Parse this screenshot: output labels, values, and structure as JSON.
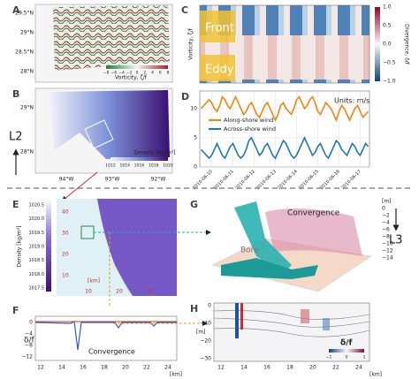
{
  "panels": {
    "A": {
      "label": "A",
      "lat_ticks": [
        "29.5°N",
        "29°N",
        "28.5°N",
        "28°N"
      ],
      "colorbar_ticks": [
        "−8",
        "−6",
        "−4",
        "−2",
        "0",
        "2",
        "4",
        "6",
        "8"
      ],
      "colorbar_label": "Vorticity, ζ/f"
    },
    "B": {
      "label": "B",
      "lat_ticks": [
        "29°N",
        "28°N"
      ],
      "lon_ticks": [
        "94°W",
        "93°W",
        "92°W"
      ],
      "colorbar_ticks": [
        "1012",
        "1014",
        "1016",
        "1018",
        "1020"
      ],
      "colorbar_label": "Density [kg/m³]"
    },
    "C": {
      "label": "C",
      "front": "Front",
      "eddy": "Eddy",
      "ylabel": "Vorticity, ζ/f",
      "colorbar_ticks": [
        "1.0",
        "0.5",
        "0.0",
        "−0.5",
        "−1.0"
      ],
      "colorbar_label": "Divergence, δ/f"
    },
    "D": {
      "label": "D"
    },
    "E": {
      "label": "E",
      "colorbar_ticks": [
        "1020.5",
        "1020.0",
        "1019.5",
        "1019.0",
        "1018.5",
        "1018.0",
        "1017.5"
      ],
      "colorbar_label": "Density [kg/m³]",
      "y_ticks": [
        "40",
        "30",
        "20",
        "10"
      ],
      "y_unit": "[km]",
      "x_ticks": [
        "10",
        "20",
        "30"
      ]
    },
    "F": {
      "label": "F",
      "y_ticks": [
        "0",
        "−4",
        "−8",
        "−12"
      ],
      "ylabel": "δ/f",
      "annotation": "Convergence",
      "x_ticks": [
        "12",
        "14",
        "16",
        "18",
        "20",
        "22",
        "24"
      ],
      "x_unit": "[km]"
    },
    "G": {
      "label": "G",
      "convergence": "Convergence",
      "bore": "Bore",
      "z_ticks": [
        "0",
        "−2",
        "−4",
        "−6",
        "−8",
        "−10",
        "−12",
        "−14"
      ],
      "z_unit": "[m]"
    },
    "H": {
      "label": "H",
      "y_ticks": [
        "0",
        "−10",
        "−20",
        "−30"
      ],
      "y_unit": "[m]",
      "x_ticks": [
        "12",
        "14",
        "16",
        "18",
        "20",
        "22",
        "24"
      ],
      "x_unit": "[km]",
      "cbar_label": "δ/f",
      "cbar_ticks": [
        "−1",
        "0",
        "1"
      ]
    },
    "levels": {
      "upper": "L2",
      "lower": "L3"
    }
  },
  "chart_data": {
    "type": "line",
    "annotation": "Units: m/s",
    "categories": [
      null,
      null,
      null,
      null,
      "2010-06-10",
      null,
      null,
      null,
      null,
      null,
      null,
      null,
      "2010-06-11",
      null,
      null,
      null,
      null,
      null,
      null,
      null,
      "2010-06-12",
      null,
      null,
      null,
      null,
      null,
      null,
      null,
      "2010-06-13",
      null,
      null,
      null,
      null,
      null,
      null,
      null,
      "2010-06-14",
      null,
      null,
      null,
      null,
      null,
      null,
      null,
      "2010-06-15",
      null,
      null,
      null,
      null,
      null,
      null,
      null,
      "2010-06-16",
      null,
      null,
      null,
      null,
      null,
      null,
      null,
      "2010-06-17",
      null,
      null,
      null
    ],
    "series": [
      {
        "name": "Along-shore wind",
        "color": "#f0850f",
        "values": [
          10,
          10.5,
          11,
          11.5,
          11,
          10,
          9.5,
          10.5,
          12,
          11.5,
          10.5,
          10,
          11,
          12,
          11,
          10,
          9,
          9.5,
          10.5,
          11,
          10,
          9,
          8.5,
          9.5,
          10.5,
          11,
          10,
          9,
          8,
          9,
          10.5,
          11,
          10,
          9.5,
          9,
          10,
          11.5,
          12,
          11,
          10,
          10.5,
          11.5,
          12,
          11,
          9.5,
          9,
          10,
          11,
          10.5,
          10,
          9,
          8,
          9.5,
          10.5,
          10,
          9,
          8,
          9,
          10,
          10.5,
          9.5,
          8.5,
          9,
          9.5
        ]
      },
      {
        "name": "Across-shore wind",
        "color": "#1f77b4",
        "values": [
          3,
          2.5,
          2,
          1.5,
          2,
          3,
          4,
          3,
          2,
          1.5,
          2.5,
          3.5,
          4,
          3,
          2,
          1.5,
          2,
          3,
          4.5,
          5,
          4,
          3,
          2,
          2.5,
          3.5,
          4,
          3,
          2,
          1.5,
          2.5,
          3.5,
          4.5,
          4,
          3,
          2,
          1.5,
          2,
          3,
          4,
          5,
          4,
          3,
          2,
          2.5,
          3.5,
          4,
          3,
          2,
          1.5,
          2.5,
          3.5,
          4.5,
          4,
          3,
          2.5,
          2,
          3,
          4,
          3.5,
          2.5,
          2,
          3,
          4,
          3.5
        ]
      }
    ],
    "ylim": [
      0,
      13
    ],
    "yticks": [
      0,
      5,
      10
    ],
    "grid": true
  }
}
